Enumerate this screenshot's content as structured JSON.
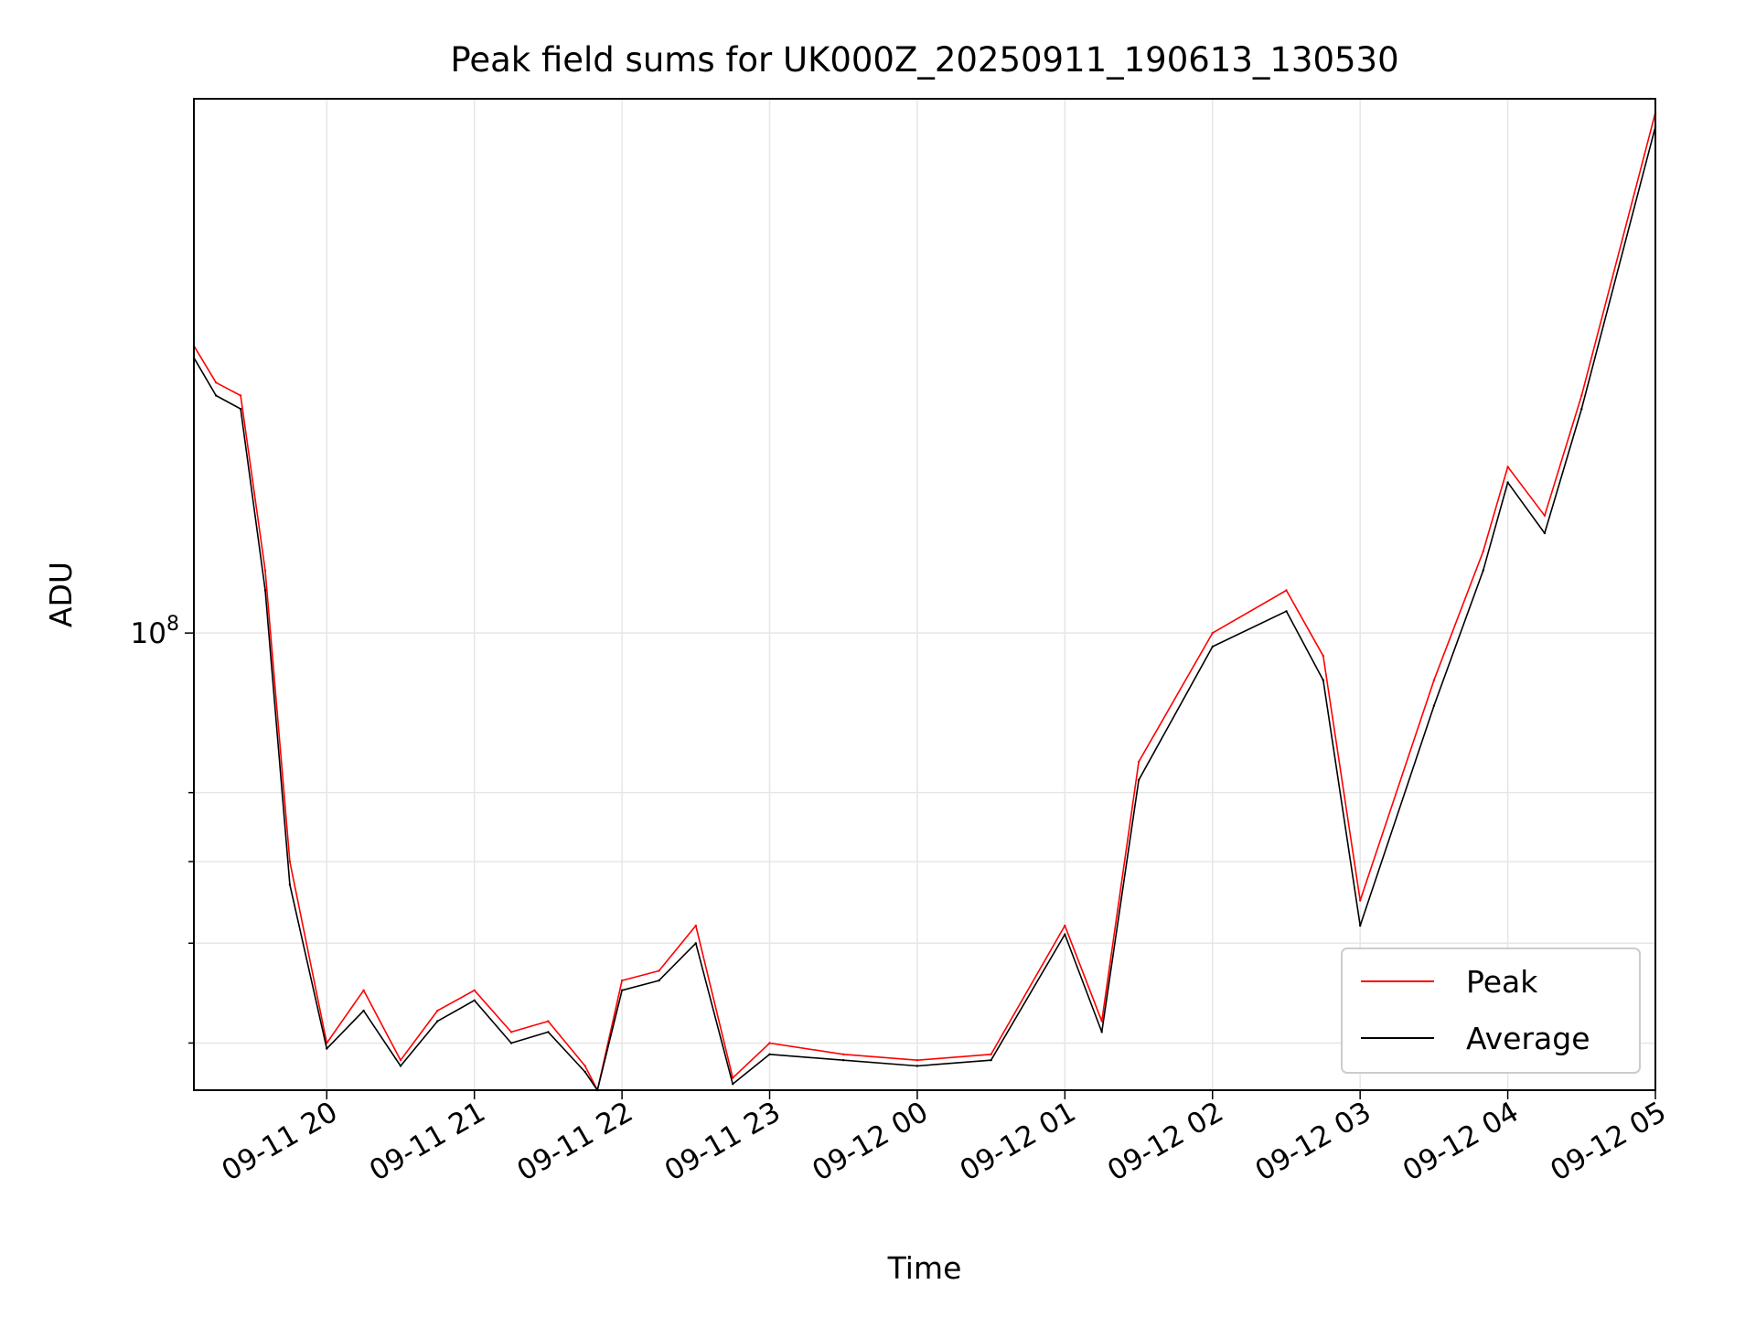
{
  "chart_data": {
    "type": "line",
    "title": "Peak field sums for UK000Z_20250911_190613_130530",
    "xlabel": "Time",
    "ylabel": "ADU",
    "x_ticks": [
      "09-11 20",
      "09-11 21",
      "09-11 22",
      "09-11 23",
      "09-12 00",
      "09-12 01",
      "09-12 02",
      "09-12 03",
      "09-12 04",
      "09-12 05"
    ],
    "y_ticks_major": [
      {
        "label_base": "10",
        "label_exp": "8",
        "value": 100000000
      }
    ],
    "y_ticks_minor": [
      40000000,
      50000000,
      60000000,
      70000000
    ],
    "y_scale": "log",
    "ylim": [
      36000000,
      330000000
    ],
    "x_range_hours_from_0911_1900": [
      0.1,
      10.0
    ],
    "grid": true,
    "legend_position": "lower-right",
    "colors": {
      "peak": "#ff0000",
      "average": "#000000",
      "grid": "#e6e6e6"
    },
    "series": [
      {
        "name": "Peak",
        "color": "#ff0000",
        "x": [
          "09-11 19:06",
          "09-11 19:15",
          "09-11 19:25",
          "09-11 19:35",
          "09-11 19:45",
          "09-11 20:00",
          "09-11 20:15",
          "09-11 20:30",
          "09-11 20:45",
          "09-11 21:00",
          "09-11 21:15",
          "09-11 21:30",
          "09-11 21:45",
          "09-11 21:50",
          "09-11 22:00",
          "09-11 22:15",
          "09-11 22:30",
          "09-11 22:45",
          "09-11 23:00",
          "09-11 23:30",
          "09-12 00:00",
          "09-12 00:30",
          "09-12 01:00",
          "09-12 01:15",
          "09-12 01:30",
          "09-12 02:00",
          "09-12 02:30",
          "09-12 02:45",
          "09-12 03:00",
          "09-12 03:30",
          "09-12 03:50",
          "09-12 04:00",
          "09-12 04:15",
          "09-12 04:30",
          "09-12 05:00"
        ],
        "values": [
          190000000,
          175000000,
          170000000,
          115000000,
          60000000,
          40000000,
          45000000,
          38500000,
          43000000,
          45000000,
          41000000,
          42000000,
          38000000,
          36000000,
          46000000,
          47000000,
          52000000,
          37000000,
          40000000,
          39000000,
          38500000,
          39000000,
          52000000,
          42000000,
          75000000,
          100000000,
          110000000,
          95000000,
          55000000,
          90000000,
          120000000,
          145000000,
          130000000,
          170000000,
          320000000
        ]
      },
      {
        "name": "Average",
        "color": "#000000",
        "x": [
          "09-11 19:06",
          "09-11 19:15",
          "09-11 19:25",
          "09-11 19:35",
          "09-11 19:45",
          "09-11 20:00",
          "09-11 20:15",
          "09-11 20:30",
          "09-11 20:45",
          "09-11 21:00",
          "09-11 21:15",
          "09-11 21:30",
          "09-11 21:45",
          "09-11 21:50",
          "09-11 22:00",
          "09-11 22:15",
          "09-11 22:30",
          "09-11 22:45",
          "09-11 23:00",
          "09-11 23:30",
          "09-12 00:00",
          "09-12 00:30",
          "09-12 01:00",
          "09-12 01:15",
          "09-12 01:30",
          "09-12 02:00",
          "09-12 02:30",
          "09-12 02:45",
          "09-12 03:00",
          "09-12 03:30",
          "09-12 03:50",
          "09-12 04:00",
          "09-12 04:15",
          "09-12 04:30",
          "09-12 05:00"
        ],
        "values": [
          185000000,
          170000000,
          165000000,
          110000000,
          57000000,
          39500000,
          43000000,
          38000000,
          42000000,
          44000000,
          40000000,
          41000000,
          37500000,
          36000000,
          45000000,
          46000000,
          50000000,
          36500000,
          39000000,
          38500000,
          38000000,
          38500000,
          51000000,
          41000000,
          72000000,
          97000000,
          105000000,
          90000000,
          52000000,
          85000000,
          115000000,
          140000000,
          125000000,
          165000000,
          310000000
        ]
      }
    ]
  }
}
